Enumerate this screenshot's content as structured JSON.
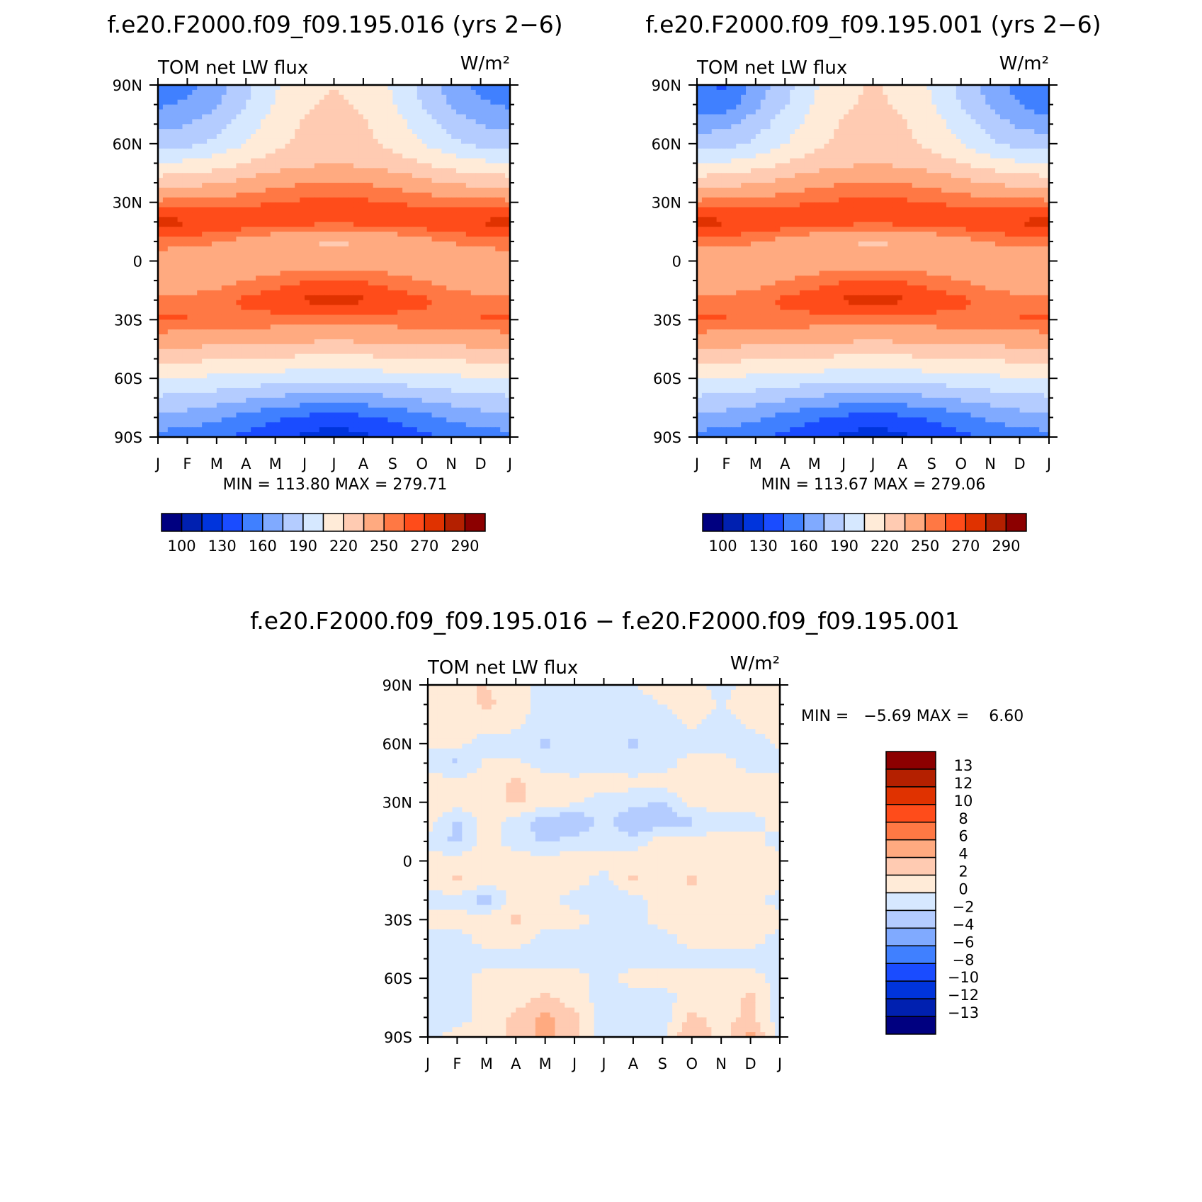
{
  "colors": [
    "#000080",
    "#0020b0",
    "#0034dc",
    "#1a4cff",
    "#4080ff",
    "#80aaff",
    "#b4ccff",
    "#d6e8ff",
    "#ffebd8",
    "#ffcbb2",
    "#ffaa80",
    "#ff7844",
    "#ff4c1a",
    "#e03200",
    "#b42000",
    "#8c0000"
  ],
  "chart_data": [
    {
      "type": "heatmap",
      "title": "f.e20.F2000.f09_f09.195.016 (yrs 2−6)",
      "left_label": "TOM net LW flux",
      "units": "W/m²",
      "stats": "MIN = 113.80 MAX = 279.71",
      "x_ticks": [
        "J",
        "F",
        "M",
        "A",
        "M",
        "J",
        "J",
        "A",
        "S",
        "O",
        "N",
        "D",
        "J"
      ],
      "y_ticks": [
        "90N",
        "60N",
        "30N",
        "0",
        "30S",
        "60S",
        "90S"
      ],
      "ylim": [
        -90,
        90
      ],
      "lats": [
        90,
        80,
        70,
        60,
        50,
        40,
        30,
        20,
        10,
        0,
        -10,
        -20,
        -30,
        -40,
        -50,
        -60,
        -70,
        -80,
        -90
      ],
      "levels": [
        100,
        115,
        130,
        145,
        160,
        175,
        190,
        205,
        220,
        235,
        250,
        260,
        270,
        280,
        290
      ],
      "colorbar_labels": [
        "100",
        "130",
        "160",
        "190",
        "220",
        "250",
        "270",
        "290"
      ],
      "values": [
        [
          150,
          155,
          168,
          185,
          203,
          215,
          220,
          215,
          203,
          185,
          168,
          155,
          150
        ],
        [
          158,
          162,
          174,
          190,
          206,
          218,
          222,
          218,
          206,
          190,
          174,
          162,
          158
        ],
        [
          170,
          174,
          184,
          198,
          212,
          222,
          226,
          222,
          212,
          198,
          184,
          174,
          170
        ],
        [
          183,
          186,
          194,
          205,
          216,
          224,
          227,
          224,
          216,
          205,
          194,
          186,
          183
        ],
        [
          206,
          208,
          213,
          220,
          227,
          232,
          234,
          232,
          227,
          220,
          213,
          208,
          206
        ],
        [
          228,
          230,
          234,
          240,
          246,
          250,
          252,
          250,
          246,
          240,
          234,
          230,
          228
        ],
        [
          253,
          254,
          256,
          258,
          260,
          262,
          263,
          262,
          260,
          258,
          256,
          254,
          253
        ],
        [
          273,
          272,
          270,
          268,
          266,
          264,
          263,
          264,
          266,
          268,
          270,
          272,
          273
        ],
        [
          257,
          255,
          251,
          245,
          239,
          235,
          233,
          235,
          239,
          245,
          251,
          255,
          257
        ],
        [
          240,
          238,
          236,
          238,
          240,
          241,
          241,
          241,
          240,
          240,
          240,
          240,
          240
        ],
        [
          240,
          241,
          245,
          250,
          255,
          259,
          260,
          259,
          255,
          250,
          245,
          241,
          240
        ],
        [
          252,
          253,
          257,
          262,
          267,
          272,
          273,
          272,
          267,
          262,
          257,
          253,
          252
        ],
        [
          262,
          261,
          260,
          258,
          256,
          255,
          254,
          255,
          256,
          258,
          260,
          261,
          262
        ],
        [
          243,
          243,
          242,
          240,
          239,
          238,
          237,
          238,
          239,
          240,
          242,
          243,
          243
        ],
        [
          224,
          223,
          222,
          220,
          218,
          217,
          216,
          217,
          218,
          220,
          222,
          223,
          224
        ],
        [
          205,
          204,
          202,
          200,
          198,
          196,
          195,
          196,
          198,
          200,
          202,
          204,
          205
        ],
        [
          188,
          187,
          183,
          178,
          173,
          169,
          168,
          169,
          173,
          178,
          183,
          187,
          188
        ],
        [
          170,
          168,
          163,
          155,
          148,
          142,
          140,
          142,
          148,
          155,
          163,
          168,
          170
        ],
        [
          155,
          153,
          148,
          140,
          133,
          127,
          120,
          127,
          133,
          140,
          148,
          153,
          155
        ]
      ]
    },
    {
      "type": "heatmap",
      "title": "f.e20.F2000.f09_f09.195.001 (yrs 2−6)",
      "left_label": "TOM net LW flux",
      "units": "W/m²",
      "stats": "MIN = 113.67 MAX = 279.06",
      "x_ticks": [
        "J",
        "F",
        "M",
        "A",
        "M",
        "J",
        "J",
        "A",
        "S",
        "O",
        "N",
        "D",
        "J"
      ],
      "y_ticks": [
        "90N",
        "60N",
        "30N",
        "0",
        "30S",
        "60S",
        "90S"
      ],
      "ylim": [
        -90,
        90
      ],
      "lats": [
        90,
        80,
        70,
        60,
        50,
        40,
        30,
        20,
        10,
        0,
        -10,
        -20,
        -30,
        -40,
        -50,
        -60,
        -70,
        -80,
        -90
      ],
      "levels": [
        100,
        115,
        130,
        145,
        160,
        175,
        190,
        205,
        220,
        235,
        250,
        260,
        270,
        280,
        290
      ],
      "colorbar_labels": [
        "100",
        "130",
        "160",
        "190",
        "220",
        "250",
        "270",
        "290"
      ],
      "values": [
        [
          148,
          142,
          166,
          184,
          203,
          216,
          221,
          216,
          203,
          185,
          168,
          154,
          148
        ],
        [
          150,
          152,
          172,
          189,
          206,
          218,
          223,
          218,
          206,
          190,
          173,
          160,
          150
        ],
        [
          168,
          172,
          183,
          197,
          212,
          222,
          226,
          222,
          212,
          198,
          183,
          172,
          168
        ],
        [
          182,
          185,
          193,
          205,
          216,
          224,
          227,
          224,
          216,
          205,
          193,
          185,
          182
        ],
        [
          205,
          207,
          213,
          220,
          227,
          232,
          234,
          232,
          227,
          220,
          213,
          207,
          205
        ],
        [
          228,
          230,
          234,
          240,
          246,
          250,
          252,
          250,
          246,
          240,
          234,
          230,
          228
        ],
        [
          253,
          254,
          256,
          258,
          260,
          262,
          263,
          262,
          260,
          258,
          256,
          254,
          253
        ],
        [
          273,
          272,
          270,
          268,
          266,
          264,
          263,
          264,
          266,
          268,
          270,
          272,
          273
        ],
        [
          257,
          255,
          251,
          245,
          239,
          235,
          233,
          235,
          239,
          245,
          251,
          255,
          257
        ],
        [
          238,
          236,
          236,
          238,
          240,
          241,
          241,
          241,
          240,
          240,
          240,
          240,
          238
        ],
        [
          240,
          241,
          245,
          250,
          255,
          259,
          260,
          259,
          255,
          250,
          245,
          241,
          240
        ],
        [
          252,
          253,
          257,
          262,
          267,
          272,
          273,
          272,
          267,
          262,
          257,
          253,
          252
        ],
        [
          262,
          261,
          260,
          258,
          256,
          255,
          254,
          255,
          256,
          258,
          260,
          261,
          262
        ],
        [
          243,
          243,
          242,
          240,
          239,
          238,
          237,
          238,
          239,
          240,
          242,
          243,
          243
        ],
        [
          224,
          223,
          222,
          220,
          218,
          217,
          216,
          217,
          218,
          220,
          222,
          223,
          224
        ],
        [
          205,
          204,
          202,
          200,
          198,
          196,
          195,
          196,
          198,
          200,
          202,
          204,
          205
        ],
        [
          188,
          187,
          183,
          178,
          173,
          169,
          168,
          169,
          173,
          178,
          183,
          187,
          188
        ],
        [
          170,
          168,
          163,
          155,
          148,
          142,
          140,
          142,
          148,
          155,
          163,
          168,
          170
        ],
        [
          155,
          153,
          148,
          140,
          133,
          127,
          120,
          127,
          133,
          140,
          148,
          153,
          155
        ]
      ]
    },
    {
      "type": "heatmap",
      "title": "f.e20.F2000.f09_f09.195.016 − f.e20.F2000.f09_f09.195.001",
      "left_label": "TOM net LW flux",
      "units": "W/m²",
      "stats": "MIN =   −5.69 MAX =    6.60",
      "x_ticks": [
        "J",
        "F",
        "M",
        "A",
        "M",
        "J",
        "J",
        "A",
        "S",
        "O",
        "N",
        "D",
        "J"
      ],
      "y_ticks": [
        "90N",
        "60N",
        "30N",
        "0",
        "30S",
        "60S",
        "90S"
      ],
      "ylim": [
        -90,
        90
      ],
      "lats": [
        90,
        80,
        70,
        60,
        50,
        40,
        30,
        20,
        10,
        0,
        -10,
        -20,
        -30,
        -40,
        -50,
        -60,
        -70,
        -80,
        -90
      ],
      "levels": [
        -13,
        -12,
        -10,
        -8,
        -6,
        -4,
        -2,
        0,
        2,
        4,
        6,
        8,
        10,
        12,
        13
      ],
      "colorbar_labels": [
        "−13",
        "−12",
        "−10",
        "−8",
        "−6",
        "−4",
        "−2",
        "0",
        "2",
        "4",
        "6",
        "8",
        "10",
        "12",
        "13"
      ],
      "values": [
        [
          1,
          2,
          2,
          1,
          -1,
          -1,
          -1,
          0,
          1,
          1,
          -1,
          1,
          1
        ],
        [
          1,
          1,
          2.5,
          1,
          -1,
          -1,
          -1,
          -1,
          0,
          1,
          0,
          1,
          1
        ],
        [
          0.5,
          1,
          1,
          0.5,
          -1,
          -1,
          -1,
          -1,
          -1,
          0.5,
          -1,
          0.5,
          0.5
        ],
        [
          0.5,
          0.5,
          -1,
          -1,
          -2.5,
          -1,
          -1,
          -2.5,
          -1,
          -1,
          -1,
          -1,
          0.5
        ],
        [
          -1,
          -2.5,
          0.5,
          0.5,
          -1,
          -1,
          -1,
          -1,
          -1,
          1,
          1,
          -1,
          -1
        ],
        [
          1,
          1,
          1,
          2.5,
          1,
          0.5,
          1,
          0.5,
          1,
          1,
          1,
          1,
          1
        ],
        [
          1,
          1,
          1,
          2.5,
          1,
          0.5,
          -1,
          -1,
          -2.5,
          1,
          1,
          1,
          1
        ],
        [
          1,
          -2.5,
          1,
          -1,
          -3,
          -4.5,
          -1,
          -4.5,
          -3,
          -2.5,
          -1,
          -1,
          1
        ],
        [
          -1,
          -2.5,
          1,
          -1,
          -2.5,
          -1,
          -1,
          -1,
          1,
          1,
          1,
          1,
          -1
        ],
        [
          1,
          1,
          1,
          1,
          1,
          1,
          1,
          1,
          1,
          1,
          1,
          1,
          1
        ],
        [
          1,
          2.5,
          1,
          1,
          1,
          1,
          -1,
          2.5,
          1,
          2.5,
          1,
          1,
          1
        ],
        [
          -1,
          -1,
          -3,
          1,
          1,
          -1,
          -1,
          -1,
          1,
          1,
          1,
          1,
          -1
        ],
        [
          1,
          1,
          1,
          2.5,
          1,
          1,
          -1,
          -1,
          1,
          1,
          1,
          1,
          1
        ],
        [
          -1,
          -1,
          1,
          1,
          -1,
          -1,
          -1,
          -1,
          -1,
          1,
          1,
          1,
          -1
        ],
        [
          -1,
          -1,
          -1,
          -1,
          -1,
          -1,
          -1,
          -1,
          -1,
          -1,
          -1,
          -1,
          -1
        ],
        [
          -1,
          -1,
          1,
          1,
          1,
          1,
          -1,
          1,
          1,
          1,
          1,
          1,
          -1
        ],
        [
          -1,
          -1,
          1,
          1,
          2.5,
          1,
          -1,
          -1,
          -1,
          1,
          1,
          2.5,
          -1
        ],
        [
          -1,
          -1,
          1,
          2.5,
          4.5,
          2.5,
          -1,
          -1,
          -1,
          2.5,
          1,
          2.5,
          -1
        ],
        [
          -1,
          1,
          1,
          2.5,
          5,
          2.5,
          -1,
          -1,
          -1,
          4.5,
          1,
          5,
          -1
        ]
      ]
    }
  ]
}
